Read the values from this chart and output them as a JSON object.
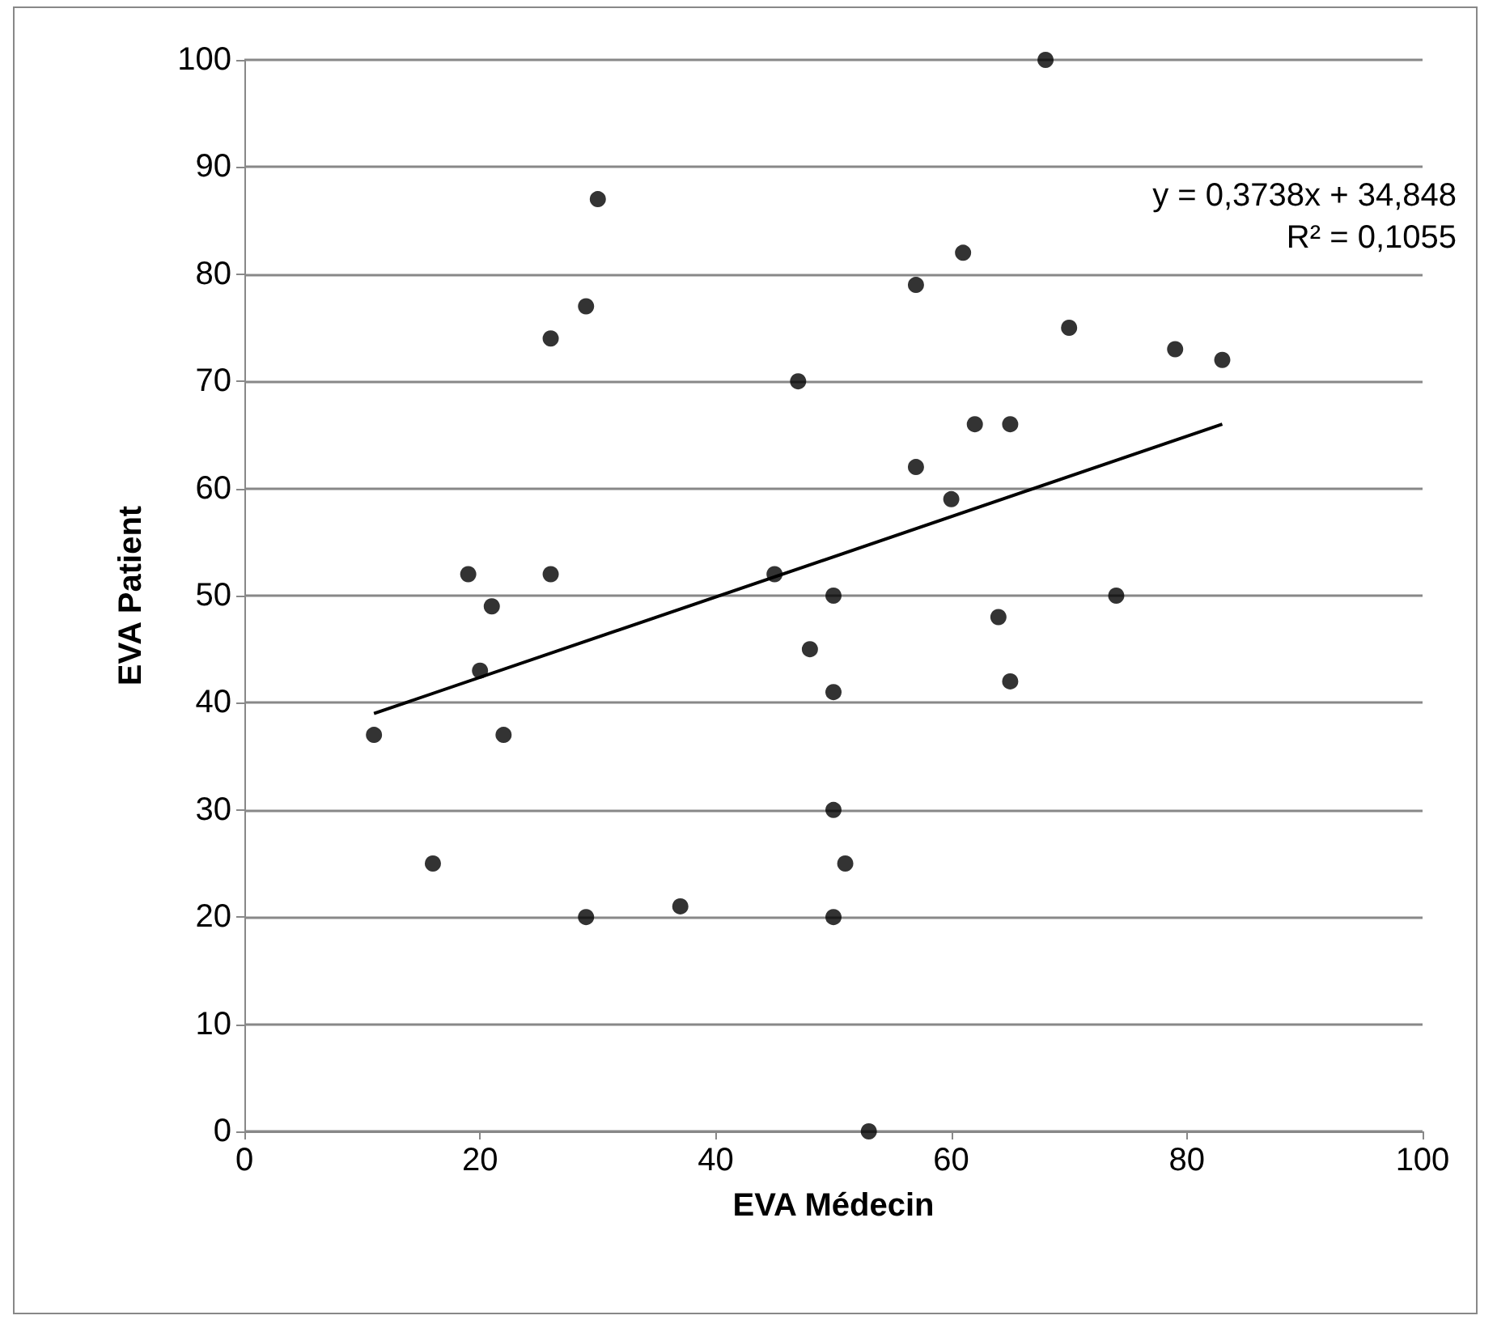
{
  "chart_data": {
    "type": "scatter",
    "xlabel": "EVA Médecin",
    "ylabel": "EVA Patient",
    "annotations": [
      "y = 0,3738x + 34,848",
      "R² = 0,1055"
    ],
    "xlim": [
      0,
      100
    ],
    "xticks": [
      0,
      20,
      40,
      60,
      80,
      100
    ],
    "ylim": [
      0,
      100
    ],
    "yticks": [
      0,
      10,
      20,
      30,
      40,
      50,
      60,
      70,
      80,
      90,
      100
    ],
    "grid": "y",
    "marker": "circle",
    "series": [
      {
        "color": "#000000",
        "x": [
          11,
          16,
          19,
          20,
          21,
          22,
          26,
          26,
          29,
          29,
          30,
          37,
          45,
          47,
          48,
          50,
          50,
          50,
          50,
          51,
          53,
          57,
          57,
          60,
          61,
          62,
          64,
          65,
          65,
          68,
          70,
          74,
          79,
          83
        ],
        "values": [
          37,
          25,
          52,
          43,
          49,
          37,
          74,
          52,
          20,
          77,
          87,
          21,
          52,
          70,
          45,
          50,
          41,
          30,
          20,
          25,
          0,
          79,
          62,
          59,
          82,
          66,
          48,
          66,
          42,
          100,
          75,
          50,
          73,
          72
        ]
      },
      {
        "type": "line",
        "color": "#000000",
        "x": [
          11,
          83
        ],
        "values": [
          39,
          66
        ],
        "marker": "none",
        "line_style": "solid"
      }
    ]
  }
}
